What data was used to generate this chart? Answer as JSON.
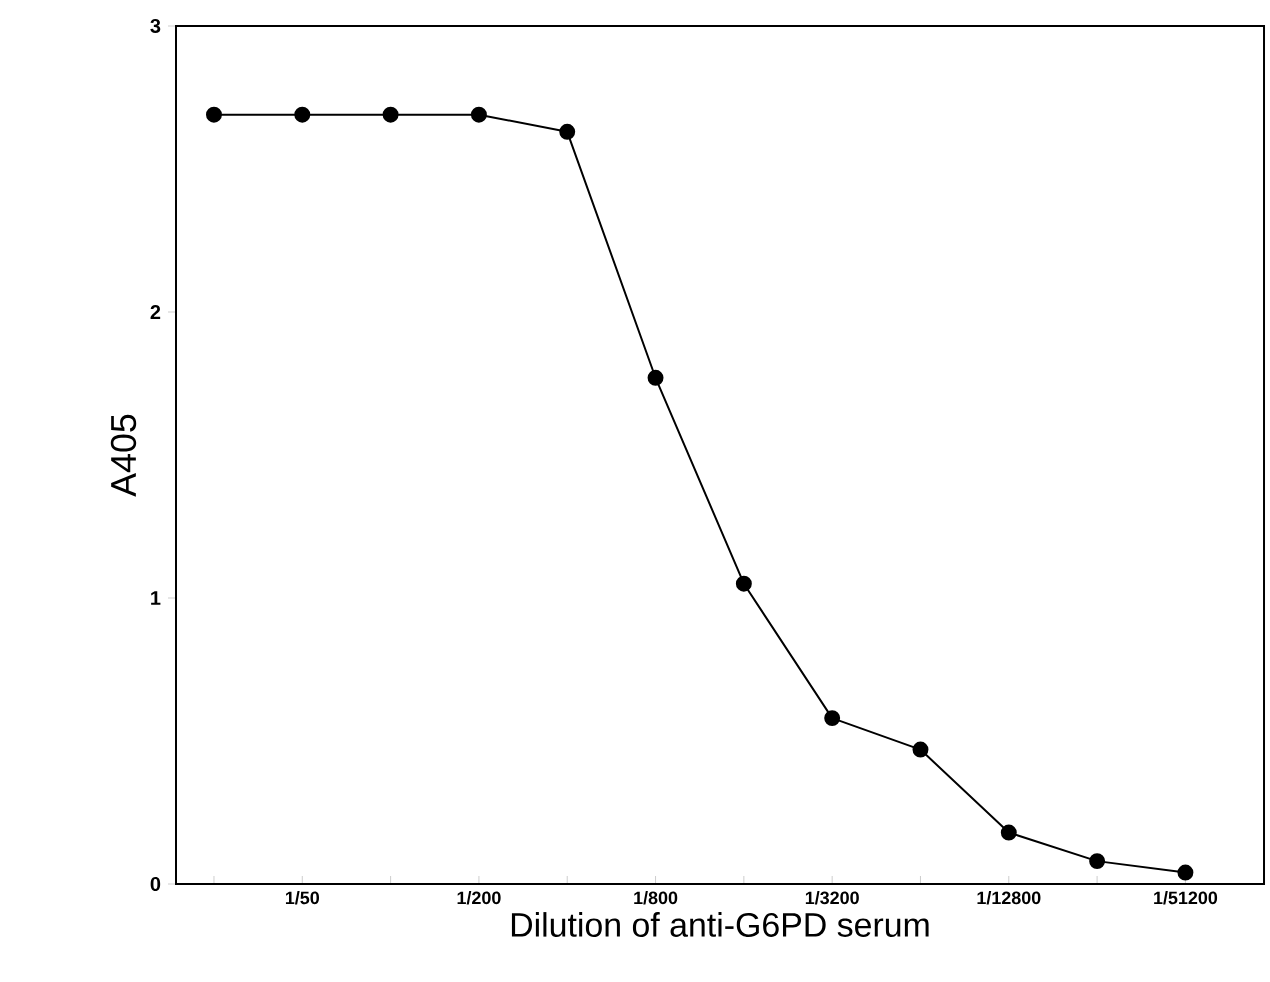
{
  "chart_data": {
    "type": "line",
    "xlabel": "Dilution of anti-G6PD serum",
    "ylabel": "A405",
    "categories": [
      null,
      "1/50",
      null,
      "1/200",
      null,
      "1/800",
      null,
      "1/3200",
      null,
      "1/12800",
      null,
      "1/51200"
    ],
    "values": [
      2.69,
      2.69,
      2.69,
      2.69,
      2.63,
      1.77,
      1.05,
      0.58,
      0.47,
      0.18,
      0.08,
      0.04
    ],
    "color": "#000000",
    "marker": "circle",
    "line_style": "solid",
    "ylim": [
      0,
      3
    ],
    "yticks": [
      0,
      1,
      2,
      3
    ],
    "grid": false
  }
}
